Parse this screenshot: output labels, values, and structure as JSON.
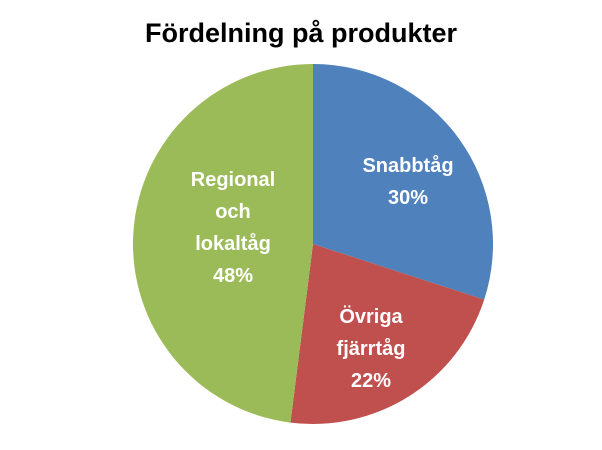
{
  "chart_data": {
    "type": "pie",
    "title": "Fördelning på produkter",
    "slices": [
      {
        "label_lines": [
          "Snabbtåg"
        ],
        "value": 30,
        "value_label": "30%",
        "color": "#4f81bd"
      },
      {
        "label_lines": [
          "Övriga",
          "fjärrtåg"
        ],
        "value": 22,
        "value_label": "22%",
        "color": "#c0504d"
      },
      {
        "label_lines": [
          "Regional",
          "och",
          "lokaltåg"
        ],
        "value": 48,
        "value_label": "48%",
        "color": "#9bbb59"
      }
    ],
    "legend": "none",
    "start_angle": "12 o'clock",
    "direction": "clockwise"
  }
}
